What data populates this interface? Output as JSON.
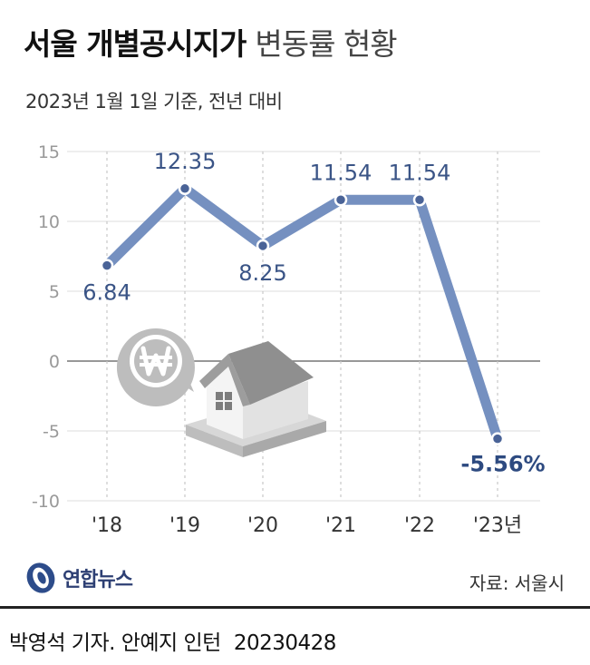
{
  "header": {
    "title_bold": "서울 개별공시지가",
    "title_light": "변동률 현황",
    "subtitle": "2023년 1월 1일 기준, 전년 대비"
  },
  "chart_data": {
    "type": "line",
    "categories": [
      "'18",
      "'19",
      "'20",
      "'21",
      "'22",
      "'23년"
    ],
    "values": [
      6.84,
      12.35,
      8.25,
      11.54,
      11.54,
      -5.56
    ],
    "data_labels": [
      "6.84",
      "12.35",
      "8.25",
      "11.54",
      "11.54",
      "-5.56%"
    ],
    "yticks": [
      15,
      10,
      5,
      0,
      -5,
      -10
    ],
    "ylim": [
      -10,
      15
    ],
    "grid": true,
    "line_color": "#7590c0",
    "label_color": "#3a5486",
    "last_label_color": "#2d4a80"
  },
  "illustration": {
    "icons": [
      "won-coin-icon",
      "house-icon"
    ]
  },
  "source": {
    "logo": "연합뉴스",
    "text": "자료: 서울시"
  },
  "footer": {
    "credit": "박영석 기자. 안예지 인턴",
    "date": "20230428"
  }
}
